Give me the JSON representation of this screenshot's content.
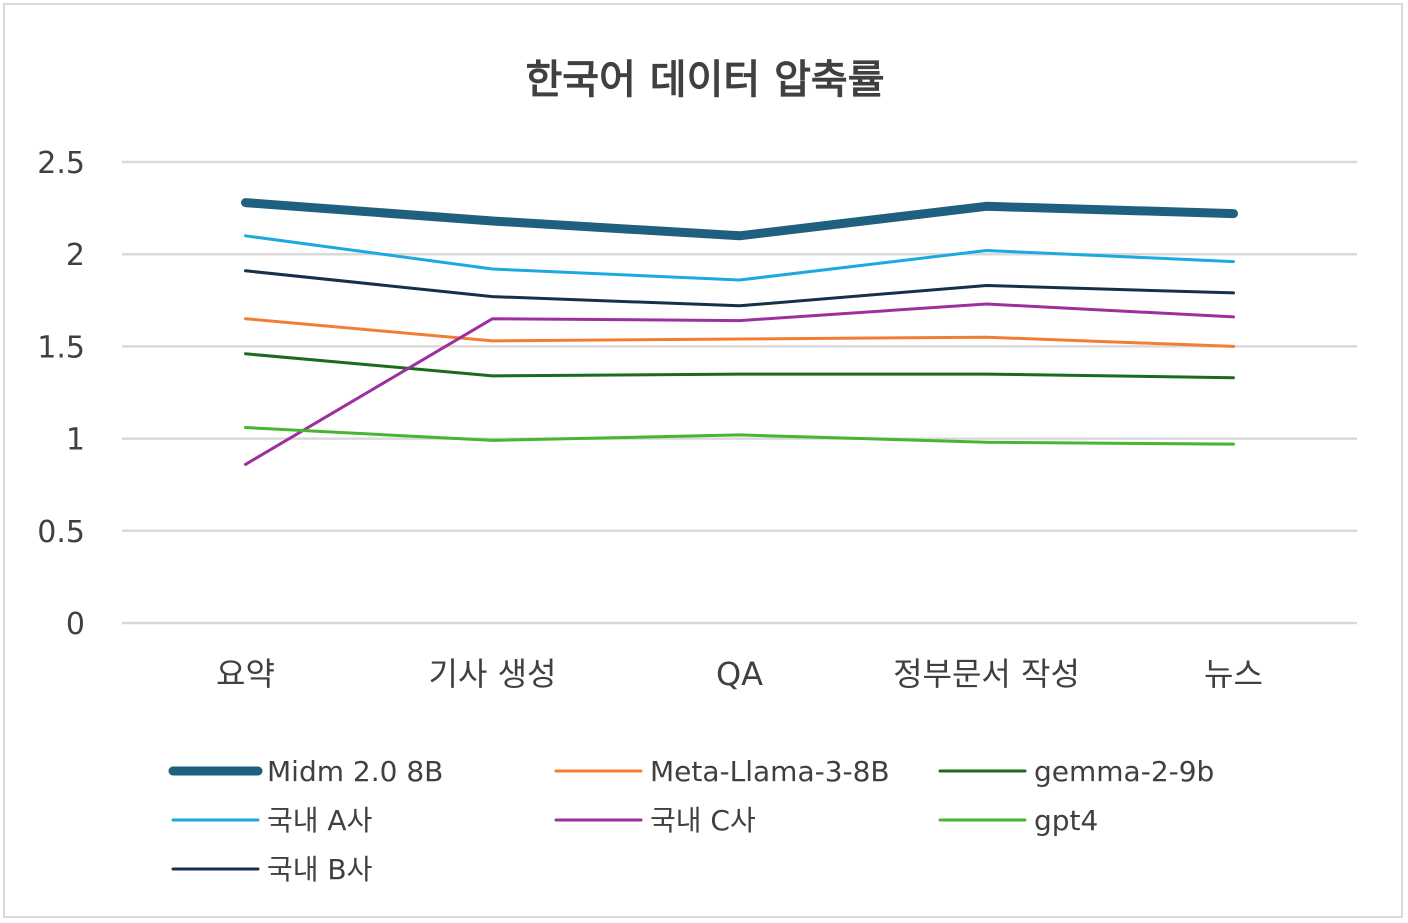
{
  "chart_data": {
    "type": "line",
    "title": "한국어 데이터 압축률",
    "categories": [
      "요약",
      "기사 생성",
      "QA",
      "정부문서 작성",
      "뉴스"
    ],
    "ylim": [
      0,
      2.5
    ],
    "yticks": [
      "0",
      "0.5",
      "1",
      "1.5",
      "2",
      "2.5"
    ],
    "grid": true,
    "legend_position": "bottom",
    "series": [
      {
        "name": "Midm 2.0 8B",
        "values": [
          2.28,
          2.18,
          2.1,
          2.26,
          2.22
        ],
        "color": "#1f5f7f",
        "emphasis": "thick"
      },
      {
        "name": "Meta-Llama-3-8B",
        "values": [
          1.65,
          1.53,
          1.54,
          1.55,
          1.5
        ],
        "color": "#f07f35"
      },
      {
        "name": "gemma-2-9b",
        "values": [
          1.46,
          1.34,
          1.35,
          1.35,
          1.33
        ],
        "color": "#1a6b1a"
      },
      {
        "name": "국내 A사",
        "values": [
          2.1,
          1.92,
          1.86,
          2.02,
          1.96
        ],
        "color": "#1ea8e0"
      },
      {
        "name": "국내 C사",
        "values": [
          0.86,
          1.65,
          1.64,
          1.73,
          1.66
        ],
        "color": "#9e2f9e"
      },
      {
        "name": "gpt4",
        "values": [
          1.06,
          0.99,
          1.02,
          0.98,
          0.97
        ],
        "color": "#48b530"
      },
      {
        "name": "국내 B사",
        "values": [
          1.91,
          1.77,
          1.72,
          1.83,
          1.79
        ],
        "color": "#14304a"
      }
    ]
  }
}
